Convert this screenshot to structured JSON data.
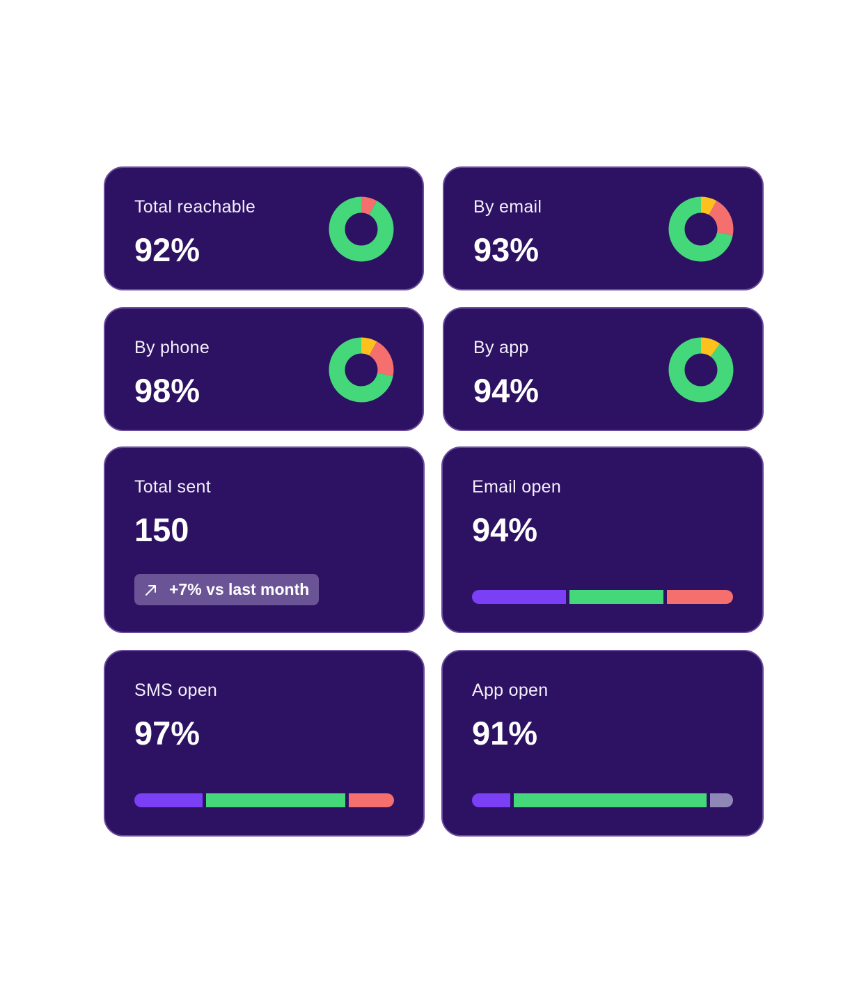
{
  "colors": {
    "card_bg": "#2d1263",
    "card_border": "#6a4b9c",
    "green": "#45d87a",
    "red": "#f56f6e",
    "yellow": "#fcc11c",
    "purple": "#7b3ff6",
    "gray": "#8f88b6",
    "badge_bg": "#6a5496"
  },
  "cards": {
    "total_reachable": {
      "label": "Total reachable",
      "value": "92%",
      "segments": [
        {
          "color": "red",
          "fraction": 0.08
        },
        {
          "color": "green",
          "fraction": 0.92
        }
      ]
    },
    "by_email": {
      "label": "By email",
      "value": "93%",
      "segments": [
        {
          "color": "yellow",
          "fraction": 0.08
        },
        {
          "color": "red",
          "fraction": 0.2
        },
        {
          "color": "green",
          "fraction": 0.72
        }
      ]
    },
    "by_phone": {
      "label": "By phone",
      "value": "98%",
      "segments": [
        {
          "color": "yellow",
          "fraction": 0.08
        },
        {
          "color": "red",
          "fraction": 0.2
        },
        {
          "color": "green",
          "fraction": 0.72
        }
      ]
    },
    "by_app": {
      "label": "By app",
      "value": "94%",
      "segments": [
        {
          "color": "yellow",
          "fraction": 0.1
        },
        {
          "color": "green",
          "fraction": 0.9
        }
      ]
    },
    "total_sent": {
      "label": "Total sent",
      "value": "150",
      "trend_icon": "arrow-up-right-icon",
      "trend_text": "+7% vs last month"
    },
    "email_open": {
      "label": "Email open",
      "value": "94%",
      "segments": [
        {
          "color": "purple",
          "fraction": 0.37
        },
        {
          "color": "green",
          "fraction": 0.37
        },
        {
          "color": "red",
          "fraction": 0.26
        }
      ]
    },
    "sms_open": {
      "label": "SMS open",
      "value": "97%",
      "segments": [
        {
          "color": "purple",
          "fraction": 0.27
        },
        {
          "color": "green",
          "fraction": 0.55
        },
        {
          "color": "red",
          "fraction": 0.18
        }
      ]
    },
    "app_open": {
      "label": "App open",
      "value": "91%",
      "segments": [
        {
          "color": "purple",
          "fraction": 0.15
        },
        {
          "color": "green",
          "fraction": 0.76
        },
        {
          "color": "gray",
          "fraction": 0.09
        }
      ]
    }
  }
}
